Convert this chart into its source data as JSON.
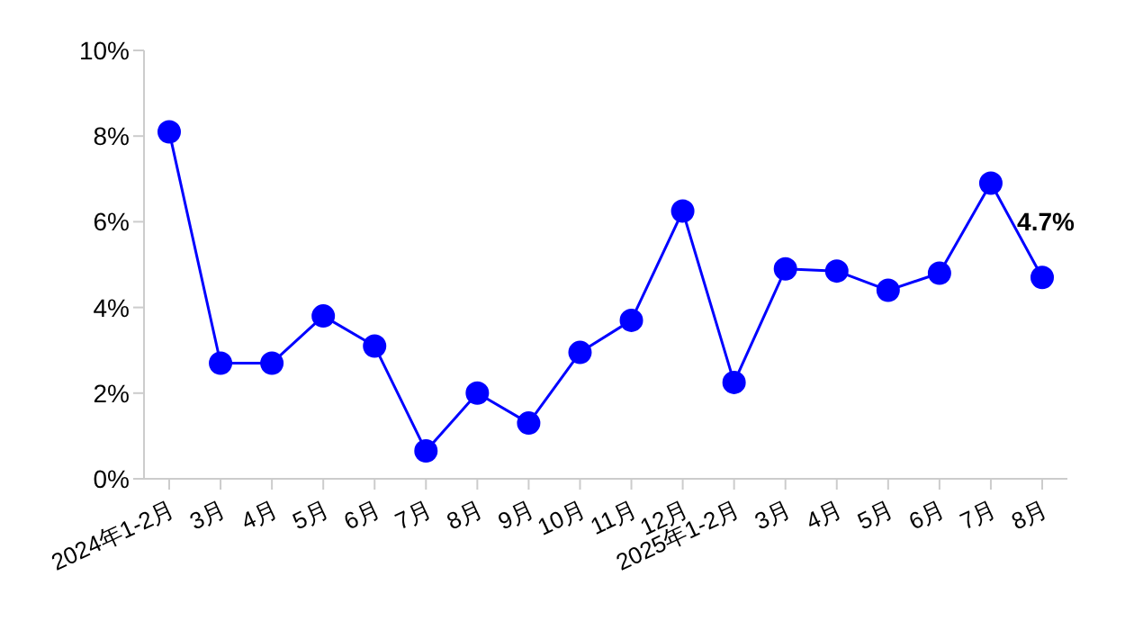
{
  "chart_data": {
    "type": "line",
    "categories": [
      "2024年1-2月",
      "3月",
      "4月",
      "5月",
      "6月",
      "7月",
      "8月",
      "9月",
      "10月",
      "11月",
      "12月",
      "2025年1-2月",
      "3月",
      "4月",
      "5月",
      "6月",
      "7月",
      "8月"
    ],
    "series": [
      {
        "color": "#0000ff",
        "values": [
          8.1,
          2.7,
          2.7,
          3.8,
          3.1,
          0.65,
          2.0,
          1.3,
          2.95,
          3.7,
          6.25,
          2.25,
          4.9,
          4.85,
          4.4,
          4.8,
          6.9,
          4.7
        ],
        "value_labels": [
          null,
          null,
          null,
          null,
          null,
          null,
          null,
          null,
          null,
          null,
          null,
          null,
          null,
          null,
          null,
          null,
          null,
          "4.7%"
        ]
      }
    ],
    "ylim": [
      0,
      10
    ],
    "yticks": [
      {
        "value": 0,
        "label": "0%"
      },
      {
        "value": 2,
        "label": "2%"
      },
      {
        "value": 4,
        "label": "4%"
      },
      {
        "value": 6,
        "label": "6%"
      },
      {
        "value": 8,
        "label": "8%"
      },
      {
        "value": 10,
        "label": "10%"
      }
    ],
    "grid": false,
    "legend": false,
    "marker": "circle",
    "line_style": "solid"
  }
}
